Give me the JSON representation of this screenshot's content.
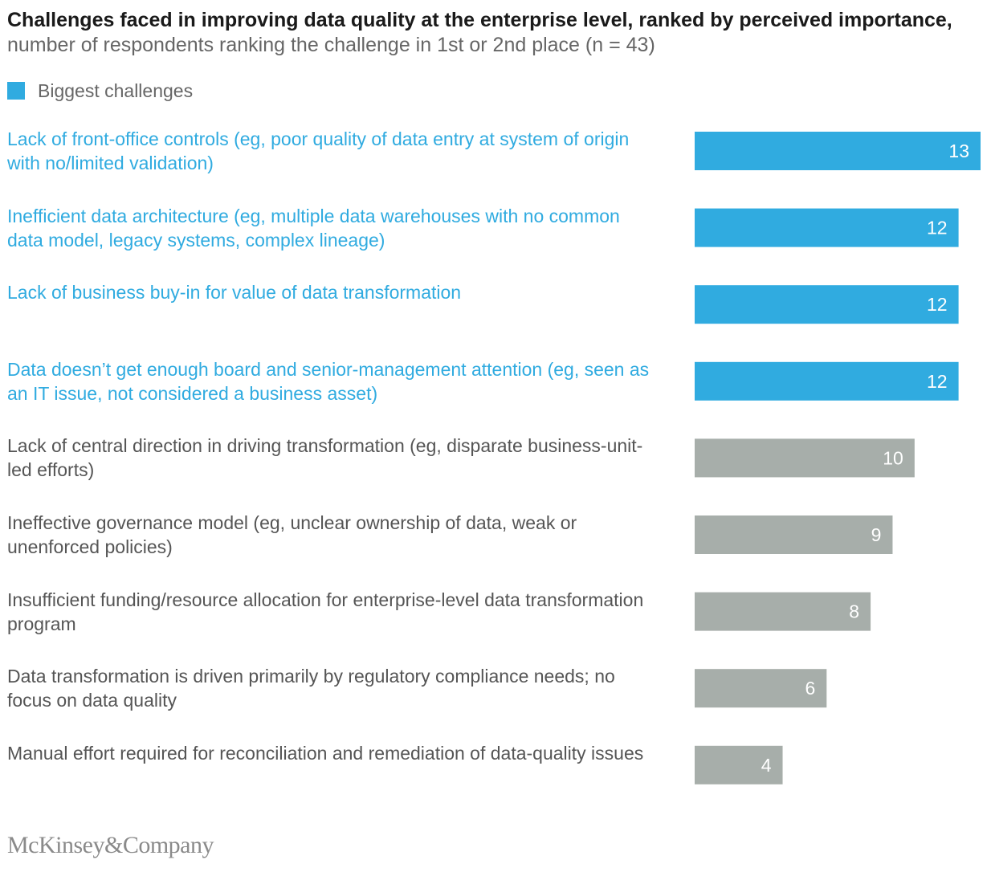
{
  "title": {
    "bold": "Challenges faced in improving data quality at the enterprise level, ranked by perceived importance,",
    "sub": "number of respondents ranking the challenge in 1st or 2nd place (n = 43)"
  },
  "legend": {
    "label": "Biggest challenges",
    "color": "#30ABE0"
  },
  "colors": {
    "highlight": "#30ABE0",
    "other": "#A7AEAA",
    "other_label": "#555555",
    "value_text": "#ffffff"
  },
  "chart_data": {
    "type": "bar",
    "orientation": "horizontal",
    "categories": [
      "Lack of front-office controls (eg, poor quality of data entry at system of origin with no/limited validation)",
      "Inefficient data architecture (eg, multiple data warehouses with no common data model, legacy systems, complex lineage)",
      "Lack of business buy-in for value of data transformation",
      "Data doesn’t get enough board and senior-management attention (eg, seen as an IT issue, not considered a business asset)",
      "Lack of central direction in driving transformation (eg, disparate business-unit-led efforts)",
      "Ineffective governance model (eg, unclear ownership of data, weak or unenforced policies)",
      "Insufficient funding/resource allocation for enterprise-level data transformation program",
      "Data transformation is driven primarily by regulatory compliance needs; no focus on data quality",
      "Manual effort required for reconciliation and remediation of data-quality issues"
    ],
    "values": [
      13,
      12,
      12,
      12,
      10,
      9,
      8,
      6,
      4
    ],
    "highlighted": [
      true,
      true,
      true,
      true,
      false,
      false,
      false,
      false,
      false
    ],
    "value_labels": [
      "13",
      "12",
      "12",
      "12",
      "10",
      "9",
      "8",
      "6",
      "4"
    ],
    "xlim": [
      0,
      13
    ],
    "grid": false,
    "legend_position": "top-left"
  },
  "footer": {
    "logo": "McKinsey&Company"
  }
}
